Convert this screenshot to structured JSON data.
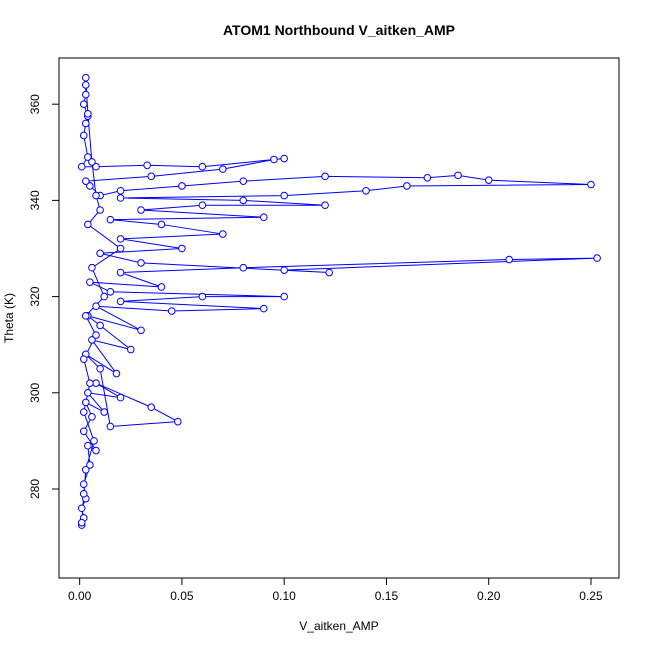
{
  "chart_data": {
    "type": "line_points",
    "title": "ATOM1 Northbound V_aitken_AMP",
    "x_label": "V_aitken_AMP",
    "y_label": "Theta (K)",
    "color": "#0000ff",
    "xlim": [
      -0.0101,
      0.2637
    ],
    "ylim": [
      261.5,
      369.6
    ],
    "xticks": [
      {
        "value": 0,
        "label": "0.00"
      },
      0.05,
      {
        "value": 0.1,
        "label": "0.10"
      },
      0.15,
      {
        "value": 0.2,
        "label": "0.20"
      },
      0.25
    ],
    "yticks": [
      280,
      300,
      320,
      340,
      360
    ],
    "x": [
      0.001,
      0.002,
      0.001,
      0.003,
      0.002,
      0.005,
      0.004,
      0.008,
      0.002,
      0.006,
      0.003,
      0.012,
      0.004,
      0.02,
      0.008,
      0.035,
      0.048,
      0.015,
      0.01,
      0.003,
      0.018,
      0.006,
      0.025,
      0.01,
      0.004,
      0.03,
      0.008,
      0.045,
      0.09,
      0.02,
      0.06,
      0.1,
      0.015,
      0.005,
      0.04,
      0.02,
      0.08,
      0.21,
      0.253,
      0.1,
      0.122,
      0.03,
      0.01,
      0.05,
      0.02,
      0.07,
      0.04,
      0.015,
      0.09,
      0.03,
      0.06,
      0.12,
      0.08,
      0.02,
      0.1,
      0.14,
      0.16,
      0.25,
      0.2,
      0.185,
      0.17,
      0.12,
      0.08,
      0.05,
      0.02,
      0.01,
      0.005,
      0.003,
      0.035,
      0.07,
      0.095,
      0.1,
      0.06,
      0.033,
      0.008,
      0.001,
      0.004,
      0.002,
      0.003,
      0.004,
      0.002,
      0.003,
      0.003,
      0.003,
      0.004,
      0.006,
      0.008,
      0.01,
      0.004,
      0.02,
      0.006,
      0.012,
      0.003,
      0.008,
      0.002,
      0.005,
      0.002,
      0.007,
      0.003,
      0.002,
      0.001
    ],
    "values": [
      272.5,
      274,
      276,
      278,
      281,
      285,
      289,
      288,
      292,
      295,
      298,
      296,
      300,
      299,
      302,
      297,
      294,
      293,
      305,
      308,
      304,
      311,
      309,
      314,
      316,
      313,
      318,
      317,
      317.5,
      319,
      320,
      320,
      321,
      323,
      322,
      325,
      326,
      327.7,
      328,
      325.5,
      325,
      327,
      329,
      330,
      332,
      333,
      335,
      336,
      336.5,
      338,
      339,
      339,
      340,
      340.5,
      341,
      342,
      343,
      343.3,
      344.2,
      345.2,
      344.7,
      345,
      344,
      343,
      342,
      341,
      343,
      344,
      345,
      346.5,
      348.5,
      348.7,
      347,
      347.3,
      347,
      347,
      349,
      353.5,
      356,
      357.5,
      360,
      362,
      364,
      365.5,
      358,
      348,
      341,
      338,
      335,
      330,
      326,
      320,
      316,
      312,
      307,
      302,
      296,
      290,
      284,
      279,
      273
    ]
  }
}
